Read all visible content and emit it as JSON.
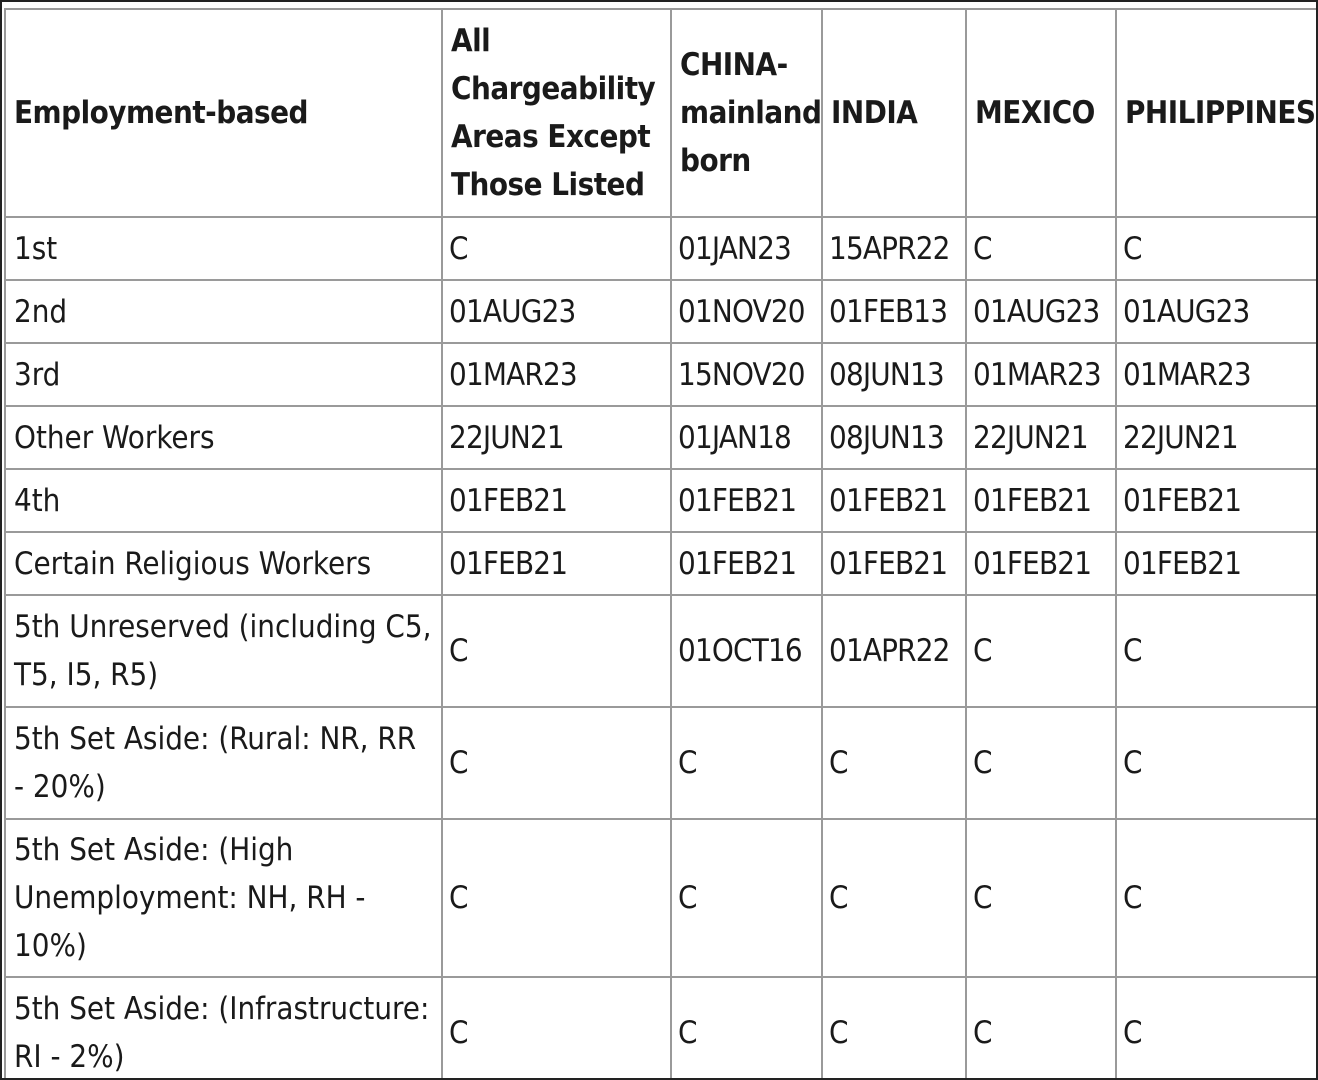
{
  "table": {
    "headers": [
      "Employment-based",
      "All Chargeability Areas Except Those Listed",
      "CHINA-mainland born",
      "INDIA",
      "MEXICO",
      "PHILIPPINES"
    ],
    "rows": [
      [
        "1st",
        "C",
        "01JAN23",
        "15APR22",
        "C",
        "C"
      ],
      [
        "2nd",
        "01AUG23",
        "01NOV20",
        "01FEB13",
        "01AUG23",
        "01AUG23"
      ],
      [
        "3rd",
        "01MAR23",
        "15NOV20",
        "08JUN13",
        "01MAR23",
        "01MAR23"
      ],
      [
        "Other Workers",
        "22JUN21",
        "01JAN18",
        "08JUN13",
        "22JUN21",
        "22JUN21"
      ],
      [
        "4th",
        "01FEB21",
        "01FEB21",
        "01FEB21",
        "01FEB21",
        "01FEB21"
      ],
      [
        "Certain Religious Workers",
        "01FEB21",
        "01FEB21",
        "01FEB21",
        "01FEB21",
        "01FEB21"
      ],
      [
        "5th Unreserved (including C5, T5, I5, R5)",
        "C",
        "01OCT16",
        "01APR22",
        "C",
        "C"
      ],
      [
        "5th Set Aside: (Rural: NR, RR - 20%)",
        "C",
        "C",
        "C",
        "C",
        "C"
      ],
      [
        "5th Set Aside: (High Unemployment: NH, RH - 10%)",
        "C",
        "C",
        "C",
        "C",
        "C"
      ],
      [
        "5th Set Aside: (Infrastructure: RI - 2%)",
        "C",
        "C",
        "C",
        "C",
        "C"
      ]
    ]
  }
}
